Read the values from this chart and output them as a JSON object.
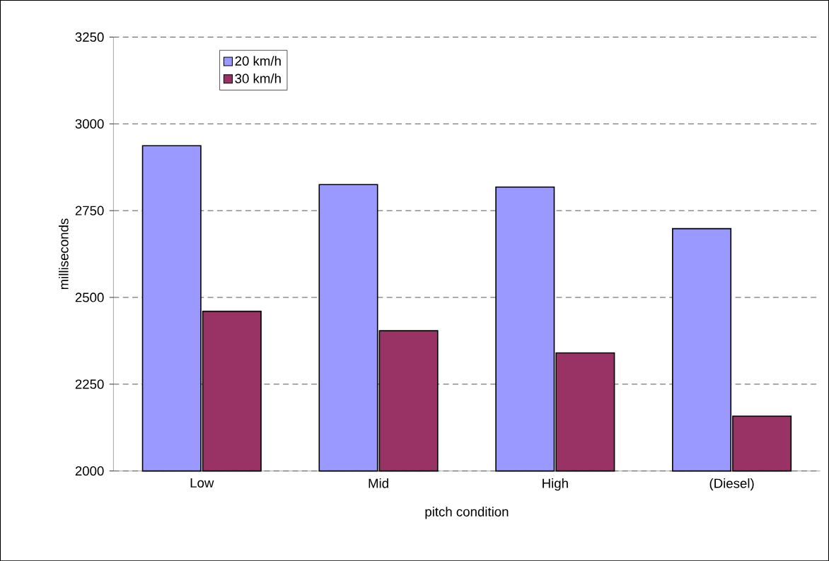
{
  "chart_data": {
    "type": "bar",
    "xlabel": "pitch condition",
    "ylabel": "milliseconds",
    "categories": [
      "Low",
      "Mid",
      "High",
      "(Diesel)"
    ],
    "series": [
      {
        "name": "20 km/h",
        "color": "#9999ff",
        "values": [
          2937,
          2825,
          2818,
          2698
        ]
      },
      {
        "name": "30 km/h",
        "color": "#993366",
        "values": [
          2460,
          2404,
          2340,
          2158
        ]
      }
    ],
    "ylim": [
      2000,
      3250
    ],
    "yticks": [
      2000,
      2250,
      2500,
      2750,
      3000,
      3250
    ],
    "grid": "y",
    "legend": "top left"
  }
}
